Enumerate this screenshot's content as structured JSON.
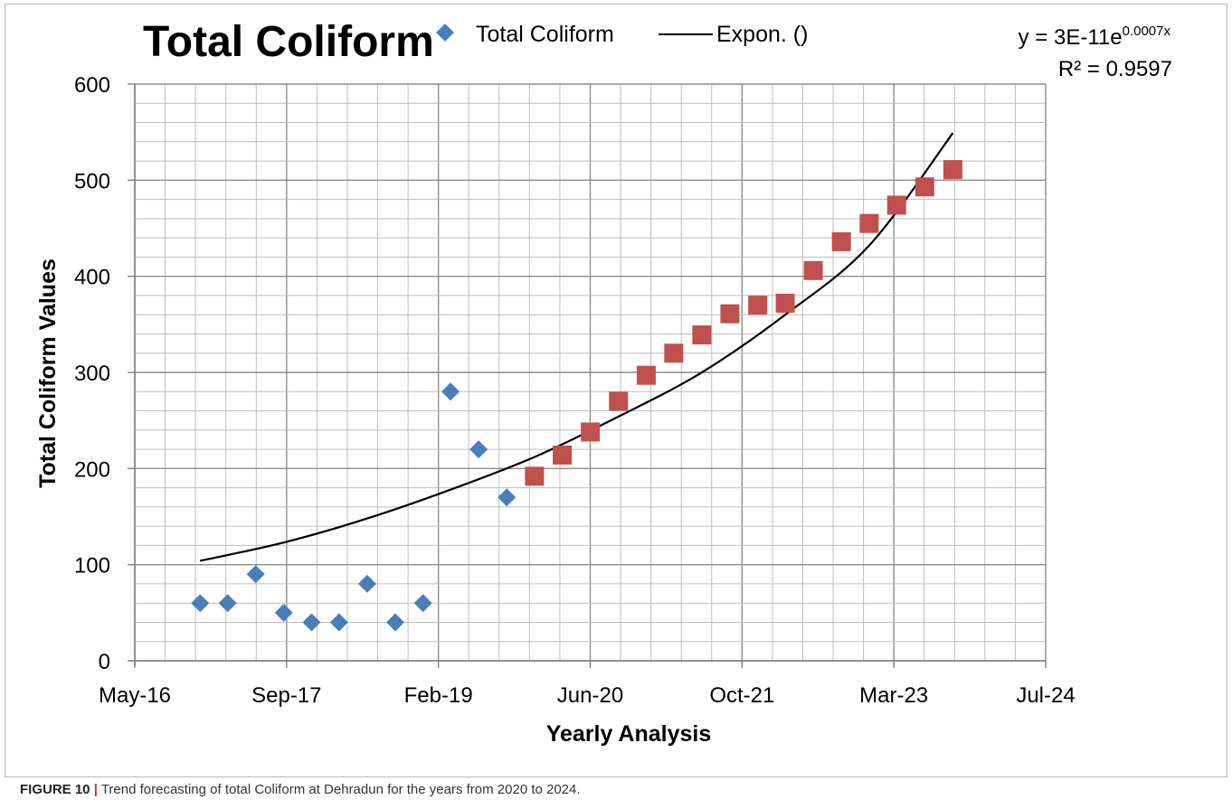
{
  "caption": {
    "label": "FIGURE 10",
    "separator": "|",
    "text": "Trend forecasting of total Coliform at Dehradun for the years from 2020 to 2024."
  },
  "chart_data": {
    "type": "scatter",
    "title": "Total Coliform",
    "xlabel": "Yearly Analysis",
    "ylabel": "Total Coliform Values",
    "xlim": [
      "2016-05-01",
      "2024-07-01"
    ],
    "ylim": [
      0,
      600
    ],
    "x_ticks": [
      "May-16",
      "Sep-17",
      "Feb-19",
      "Jun-20",
      "Oct-21",
      "Mar-23",
      "Jul-24"
    ],
    "y_ticks": [
      "0",
      "100",
      "200",
      "300",
      "400",
      "500",
      "600"
    ],
    "grid": true,
    "legend": {
      "placement": "top",
      "entries": [
        "Total Coliform",
        "Expon. ()"
      ]
    },
    "trendline_equation": {
      "base": "y = 3E-11e",
      "exponent": "0.0007x",
      "r_squared": "R² = 0.9597"
    },
    "series": [
      {
        "name": "Total Coliform",
        "marker": "diamond",
        "color": "#4a7ebb",
        "points": [
          {
            "x": "2016-12-01",
            "y": 60
          },
          {
            "x": "2017-03-01",
            "y": 60
          },
          {
            "x": "2017-06-01",
            "y": 90
          },
          {
            "x": "2017-09-01",
            "y": 50
          },
          {
            "x": "2017-12-01",
            "y": 40
          },
          {
            "x": "2018-03-01",
            "y": 40
          },
          {
            "x": "2018-06-01",
            "y": 80
          },
          {
            "x": "2018-09-01",
            "y": 40
          },
          {
            "x": "2018-12-01",
            "y": 60
          },
          {
            "x": "2019-03-01",
            "y": 280
          },
          {
            "x": "2019-06-01",
            "y": 220
          },
          {
            "x": "2019-09-01",
            "y": 170
          }
        ]
      },
      {
        "marker": "square",
        "color": "#c0504d",
        "points": [
          {
            "x": "2019-12-01",
            "y": 192
          },
          {
            "x": "2020-03-01",
            "y": 214
          },
          {
            "x": "2020-06-01",
            "y": 238
          },
          {
            "x": "2020-09-01",
            "y": 270
          },
          {
            "x": "2020-12-01",
            "y": 297
          },
          {
            "x": "2021-03-01",
            "y": 320
          },
          {
            "x": "2021-06-01",
            "y": 339
          },
          {
            "x": "2021-09-01",
            "y": 361
          },
          {
            "x": "2021-12-01",
            "y": 370
          },
          {
            "x": "2022-03-01",
            "y": 372
          },
          {
            "x": "2022-06-01",
            "y": 406
          },
          {
            "x": "2022-09-01",
            "y": 436
          },
          {
            "x": "2022-12-01",
            "y": 455
          },
          {
            "x": "2023-03-01",
            "y": 474
          },
          {
            "x": "2023-06-01",
            "y": 493
          },
          {
            "x": "2023-09-01",
            "y": 511
          }
        ]
      },
      {
        "name": "Expon. ()",
        "type": "line",
        "color": "#000000",
        "points": [
          {
            "x": "2016-12-01",
            "y": 104
          },
          {
            "x": "2017-09-01",
            "y": 123
          },
          {
            "x": "2018-06-01",
            "y": 148
          },
          {
            "x": "2019-03-01",
            "y": 178
          },
          {
            "x": "2019-12-01",
            "y": 212
          },
          {
            "x": "2020-09-01",
            "y": 254
          },
          {
            "x": "2021-06-01",
            "y": 300
          },
          {
            "x": "2022-03-01",
            "y": 360
          },
          {
            "x": "2022-12-01",
            "y": 432
          },
          {
            "x": "2023-09-01",
            "y": 549
          }
        ]
      }
    ]
  }
}
